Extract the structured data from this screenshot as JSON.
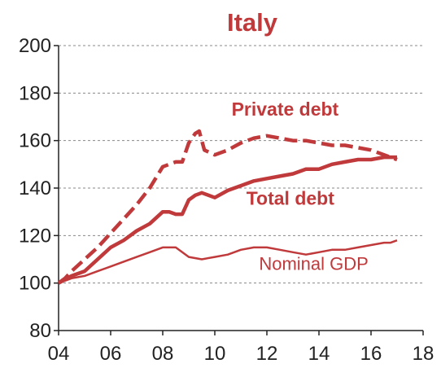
{
  "chart_data": {
    "type": "line",
    "title": "Italy",
    "xlabel": "",
    "ylabel": "",
    "xlim": [
      2004,
      2018
    ],
    "ylim": [
      80,
      200
    ],
    "xticks": [
      2004,
      2006,
      2008,
      2010,
      2012,
      2014,
      2016,
      2018
    ],
    "xtick_labels": [
      "04",
      "06",
      "08",
      "10",
      "12",
      "14",
      "16",
      "18"
    ],
    "yticks": [
      80,
      100,
      120,
      140,
      160,
      180,
      200
    ],
    "ytick_labels": [
      "80",
      "100",
      "120",
      "140",
      "160",
      "180",
      "200"
    ],
    "grid": "horizontal dashed",
    "series": [
      {
        "name": "Private debt",
        "style": "dashed",
        "color": "#c0393b",
        "x": [
          2004.0,
          2004.25,
          2004.5,
          2005.0,
          2005.5,
          2006.0,
          2006.5,
          2007.0,
          2007.5,
          2008.0,
          2008.5,
          2008.75,
          2009.0,
          2009.25,
          2009.4,
          2009.6,
          2010.0,
          2010.5,
          2011.0,
          2011.5,
          2012.0,
          2012.5,
          2013.0,
          2013.5,
          2014.0,
          2014.5,
          2015.0,
          2015.5,
          2016.0,
          2016.5,
          2016.75,
          2017.0
        ],
        "values": [
          100,
          102,
          105,
          110,
          115,
          121,
          127,
          133,
          140,
          149,
          151,
          151,
          159,
          163,
          164,
          156,
          154,
          156,
          159,
          161,
          162,
          161,
          160,
          160,
          159,
          158,
          158,
          157,
          156,
          154,
          153,
          152
        ]
      },
      {
        "name": "Total debt",
        "style": "solid",
        "color": "#c0393b",
        "x": [
          2004.0,
          2004.5,
          2005.0,
          2005.5,
          2006.0,
          2006.5,
          2007.0,
          2007.5,
          2008.0,
          2008.25,
          2008.5,
          2008.75,
          2009.0,
          2009.25,
          2009.5,
          2010.0,
          2010.5,
          2011.0,
          2011.5,
          2012.0,
          2012.5,
          2013.0,
          2013.5,
          2014.0,
          2014.5,
          2015.0,
          2015.5,
          2016.0,
          2016.5,
          2016.75,
          2017.0
        ],
        "values": [
          100,
          103,
          105,
          110,
          115,
          118,
          122,
          125,
          130,
          130,
          129,
          129,
          135,
          137,
          138,
          136,
          139,
          141,
          143,
          144,
          145,
          146,
          148,
          148,
          150,
          151,
          152,
          152,
          153,
          153,
          153
        ]
      },
      {
        "name": "Nominal GDP",
        "style": "solid-thin",
        "color": "#c0393b",
        "x": [
          2004.0,
          2004.5,
          2005.0,
          2005.5,
          2006.0,
          2006.5,
          2007.0,
          2007.5,
          2008.0,
          2008.25,
          2008.5,
          2009.0,
          2009.5,
          2010.0,
          2010.5,
          2011.0,
          2011.5,
          2012.0,
          2012.5,
          2013.0,
          2013.5,
          2014.0,
          2014.5,
          2015.0,
          2015.5,
          2016.0,
          2016.5,
          2016.75,
          2017.0
        ],
        "values": [
          100,
          102,
          103,
          105,
          107,
          109,
          111,
          113,
          115,
          115,
          115,
          111,
          110,
          111,
          112,
          114,
          115,
          115,
          114,
          113,
          112,
          113,
          114,
          114,
          115,
          116,
          117,
          117,
          118
        ]
      }
    ],
    "annotations": [
      {
        "text": "Private debt",
        "x": 2012.7,
        "y": 170.5,
        "weight": "bold"
      },
      {
        "text": "Total debt",
        "x": 2012.9,
        "y": 133,
        "weight": "bold"
      },
      {
        "text": "Nominal GDP",
        "x": 2013.8,
        "y": 105.5,
        "weight": "normal"
      }
    ],
    "colors": {
      "series": "#c0393b",
      "title": "#c0393b",
      "axis": "#222222",
      "grid": "#888888"
    }
  }
}
